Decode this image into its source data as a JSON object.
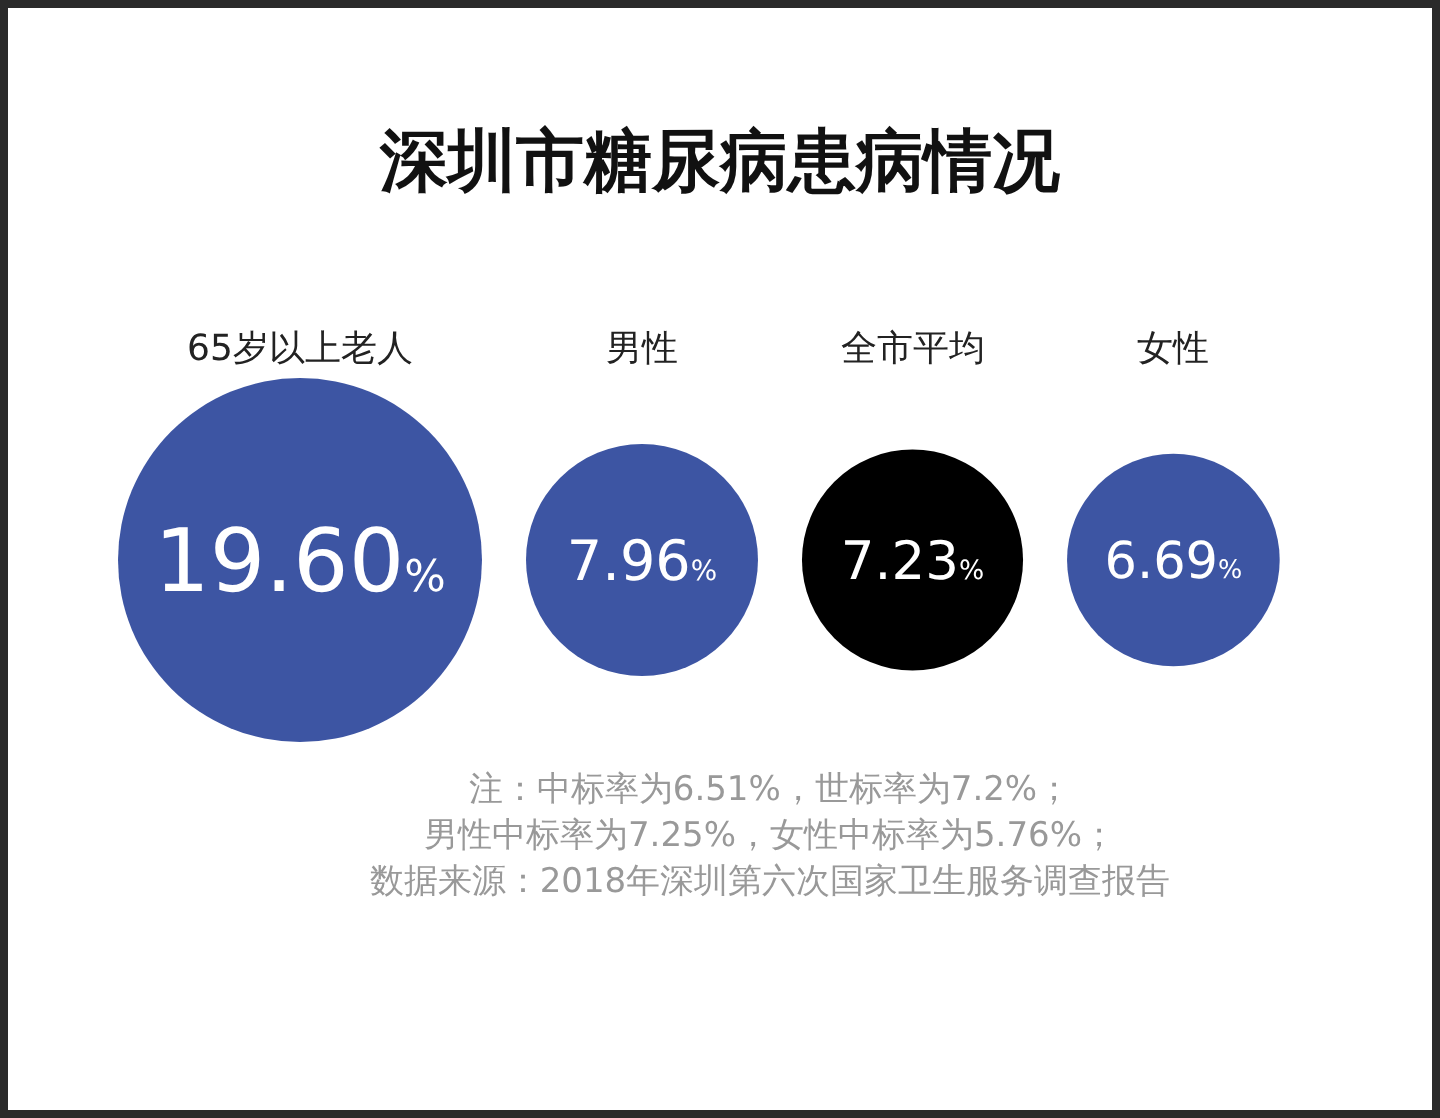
{
  "chart_data": {
    "type": "other",
    "title": "深圳市糖尿病患病情况",
    "categories": [
      "65岁以上老人",
      "男性",
      "全市平均",
      "女性"
    ],
    "values": [
      19.6,
      7.96,
      7.23,
      6.69
    ],
    "value_labels": [
      "19.60%",
      "7.96%",
      "7.23%",
      "6.69%"
    ],
    "colors": [
      "#3d55a3",
      "#3d55a3",
      "#000000",
      "#3d55a3"
    ],
    "annotations": [
      "注：中标率为6.51%，世标率为7.2%；",
      "男性中标率为7.25%，女性中标率为5.76%；",
      "数据来源：2018年深圳第六次国家卫生服务调查报告"
    ]
  }
}
